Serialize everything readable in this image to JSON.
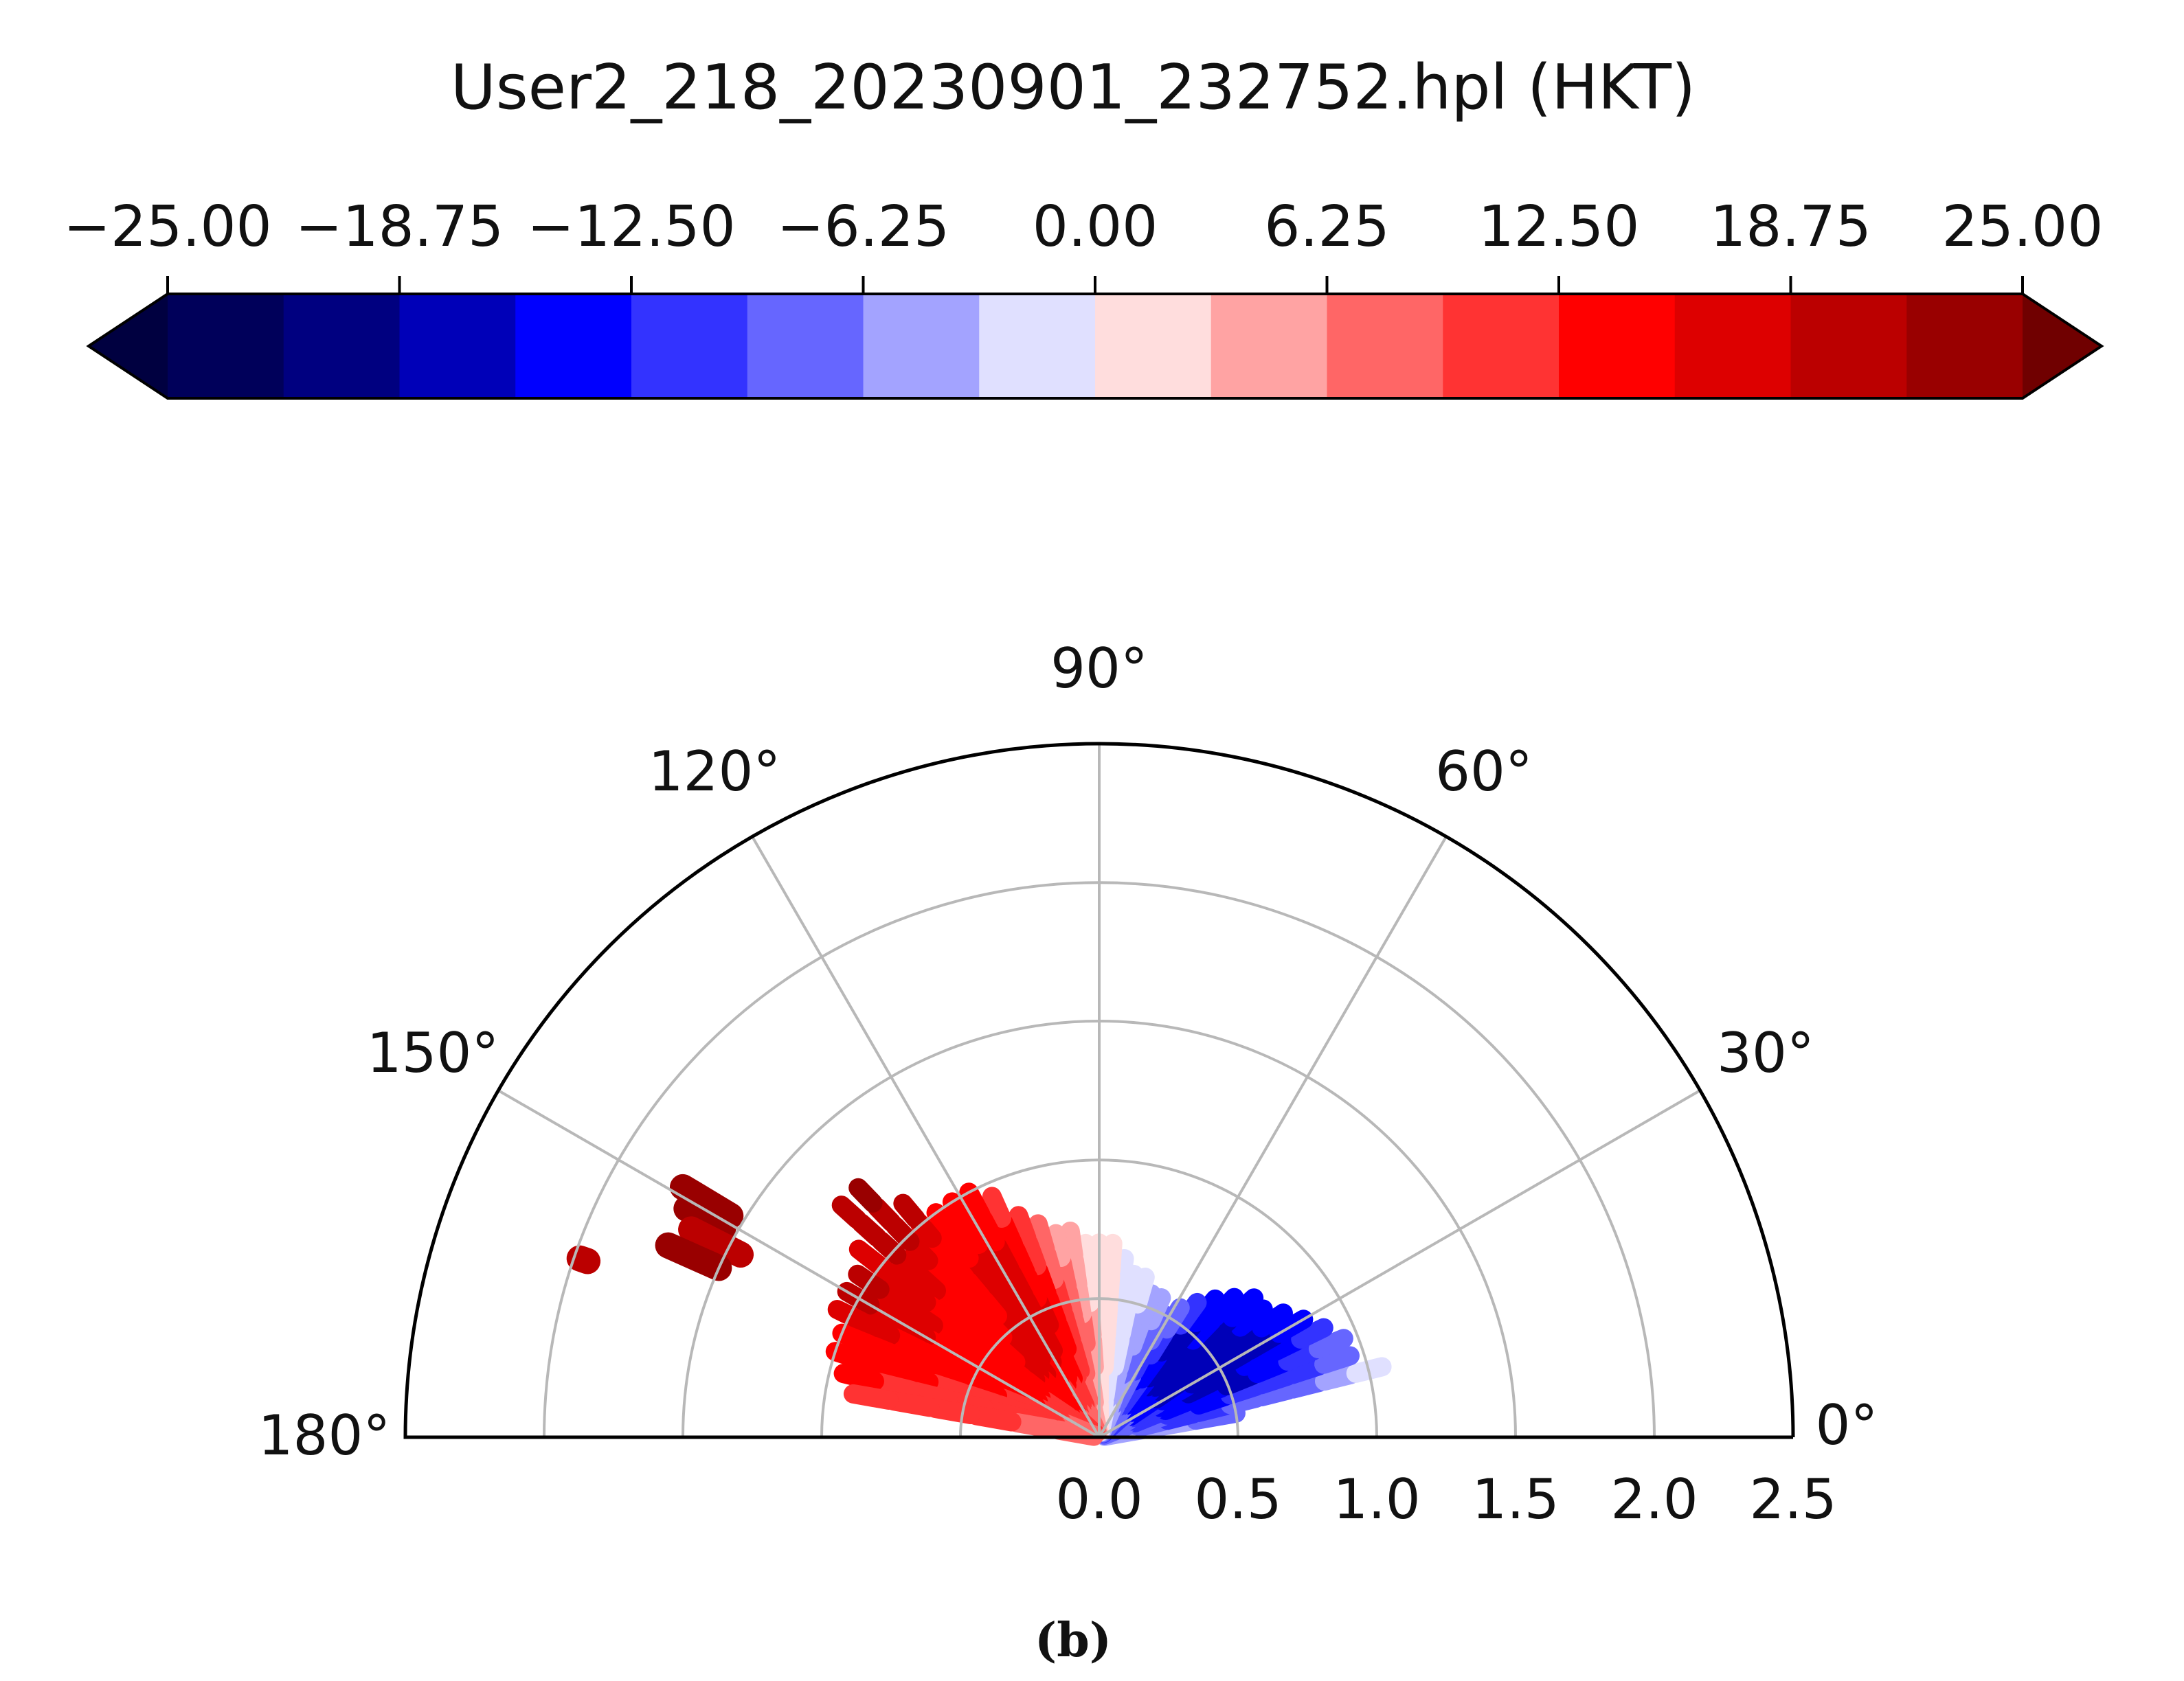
{
  "chart_data": {
    "type": "polar-sector-scatter",
    "title": "User2_218_20230901_232752.hpl (HKT)",
    "panel_label": "(b)",
    "colorbar": {
      "ticks": [
        "−25.00",
        "−18.75",
        "−12.50",
        "−6.25",
        "0.00",
        "6.25",
        "12.50",
        "18.75",
        "25.00"
      ],
      "range": [
        -25,
        25
      ],
      "bins": 16,
      "extend": "both",
      "colors": [
        "#00005a",
        "#000080",
        "#0000b8",
        "#0000ff",
        "#3333ff",
        "#6666ff",
        "#a3a3ff",
        "#e0e0ff",
        "#ffdddd",
        "#ffa3a3",
        "#ff6666",
        "#ff3333",
        "#ff0000",
        "#dd0000",
        "#bb0000",
        "#990000"
      ],
      "under_color": "#000040",
      "over_color": "#700000"
    },
    "angular_axis": {
      "range_deg": [
        0,
        180
      ],
      "ticks": [
        0,
        30,
        60,
        90,
        120,
        150,
        180
      ],
      "tick_labels": [
        "0°",
        "30°",
        "60°",
        "90°",
        "120°",
        "150°",
        "180°"
      ]
    },
    "radial_axis": {
      "range": [
        0,
        2.5
      ],
      "ticks": [
        "0.0",
        "0.5",
        "1.0",
        "1.5",
        "2.0",
        "2.5"
      ]
    },
    "grid": true,
    "beams": [
      {
        "theta": 10,
        "r_max": 0.5,
        "values": [
          -4,
          -6,
          -7
        ]
      },
      {
        "theta": 14,
        "r_max": 1.05,
        "values": [
          -5,
          -8,
          -10,
          -11,
          -9,
          -8,
          -7,
          -5,
          -3
        ]
      },
      {
        "theta": 18,
        "r_max": 0.95,
        "values": [
          -6,
          -9,
          -11,
          -13,
          -12,
          -11,
          -10,
          -8
        ]
      },
      {
        "theta": 22,
        "r_max": 0.95,
        "values": [
          -7,
          -10,
          -13,
          -15,
          -16,
          -14,
          -12,
          -9
        ]
      },
      {
        "theta": 26,
        "r_max": 0.9,
        "values": [
          -8,
          -11,
          -14,
          -16,
          -17,
          -15,
          -13,
          -10
        ]
      },
      {
        "theta": 30,
        "r_max": 0.85,
        "values": [
          -8,
          -12,
          -15,
          -17,
          -18,
          -16,
          -14
        ]
      },
      {
        "theta": 34,
        "r_max": 0.8,
        "values": [
          -9,
          -13,
          -16,
          -18,
          -18,
          -16,
          -13
        ]
      },
      {
        "theta": 38,
        "r_max": 0.75,
        "values": [
          -9,
          -13,
          -16,
          -18,
          -17,
          -15
        ]
      },
      {
        "theta": 42,
        "r_max": 0.75,
        "values": [
          -10,
          -14,
          -17,
          -18,
          -17,
          -15
        ]
      },
      {
        "theta": 46,
        "r_max": 0.7,
        "values": [
          -10,
          -14,
          -16,
          -17,
          -15,
          -13
        ]
      },
      {
        "theta": 50,
        "r_max": 0.65,
        "values": [
          -9,
          -13,
          -16,
          -17,
          -14
        ]
      },
      {
        "theta": 54,
        "r_max": 0.6,
        "values": [
          -9,
          -12,
          -15,
          -16,
          -12
        ]
      },
      {
        "theta": 58,
        "r_max": 0.55,
        "values": [
          -8,
          -11,
          -13,
          -12,
          -8
        ]
      },
      {
        "theta": 62,
        "r_max": 0.5,
        "values": [
          -7,
          -9,
          -11,
          -8
        ]
      },
      {
        "theta": 66,
        "r_max": 0.55,
        "values": [
          -6,
          -8,
          -9,
          -7,
          -5
        ]
      },
      {
        "theta": 70,
        "r_max": 0.55,
        "values": [
          -5,
          -6,
          -7,
          -5,
          -4
        ]
      },
      {
        "theta": 74,
        "r_max": 0.6,
        "values": [
          -4,
          -5,
          -5,
          -4,
          -3
        ]
      },
      {
        "theta": 78,
        "r_max": 0.6,
        "values": [
          -3,
          -4,
          -3,
          -3,
          -2
        ]
      },
      {
        "theta": 82,
        "r_max": 0.65,
        "values": [
          -2,
          -2,
          -2,
          -1,
          -1
        ]
      },
      {
        "theta": 86,
        "r_max": 0.7,
        "values": [
          -1,
          -1,
          0,
          1,
          1,
          0
        ]
      },
      {
        "theta": 90,
        "r_max": 0.7,
        "values": [
          1,
          1,
          2,
          2,
          1,
          1
        ]
      },
      {
        "theta": 94,
        "r_max": 0.7,
        "values": [
          2,
          3,
          4,
          4,
          3,
          2
        ]
      },
      {
        "theta": 98,
        "r_max": 0.75,
        "values": [
          3,
          5,
          6,
          7,
          6,
          5,
          4
        ]
      },
      {
        "theta": 102,
        "r_max": 0.75,
        "values": [
          4,
          6,
          8,
          9,
          8,
          7,
          6
        ]
      },
      {
        "theta": 106,
        "r_max": 0.8,
        "values": [
          5,
          8,
          10,
          12,
          11,
          9,
          8
        ]
      },
      {
        "theta": 110,
        "r_max": 0.85,
        "values": [
          6,
          9,
          12,
          14,
          14,
          13,
          12,
          11
        ]
      },
      {
        "theta": 114,
        "r_max": 0.95,
        "values": [
          7,
          10,
          13,
          15,
          16,
          15,
          14,
          13,
          12
        ]
      },
      {
        "theta": 118,
        "r_max": 1.0,
        "values": [
          8,
          11,
          14,
          16,
          17,
          17,
          16,
          15,
          14
        ]
      },
      {
        "theta": 122,
        "r_max": 1.0,
        "values": [
          8,
          12,
          15,
          17,
          18,
          18,
          17,
          16,
          15,
          14
        ]
      },
      {
        "theta": 126,
        "r_max": 1.0,
        "values": [
          9,
          12,
          15,
          17,
          18,
          17,
          16,
          15,
          14
        ]
      },
      {
        "theta": 130,
        "r_max": 1.1,
        "values": [
          9,
          12,
          15,
          17,
          17,
          16,
          15,
          14,
          14,
          15,
          17,
          20
        ]
      },
      {
        "theta": 134,
        "r_max": 1.25,
        "values": [
          9,
          13,
          15,
          16,
          16,
          15,
          14,
          14,
          15,
          17,
          19,
          21,
          22
        ]
      },
      {
        "theta": 138,
        "r_max": 1.25,
        "values": [
          10,
          13,
          15,
          16,
          15,
          14,
          14,
          15,
          16,
          17,
          19,
          21,
          21
        ]
      },
      {
        "theta": 142,
        "r_max": 1.1,
        "values": [
          10,
          13,
          14,
          15,
          14,
          14,
          15,
          16,
          17,
          18
        ]
      },
      {
        "theta": 146,
        "r_max": 1.05,
        "values": [
          10,
          12,
          14,
          14,
          14,
          15,
          16,
          18,
          20
        ]
      },
      {
        "theta": 150,
        "r_max": 1.05,
        "values": [
          10,
          12,
          13,
          14,
          14,
          15,
          16,
          17,
          21
        ]
      },
      {
        "theta": 154,
        "r_max": 1.05,
        "values": [
          10,
          12,
          13,
          13,
          14,
          14,
          15,
          16,
          17
        ]
      },
      {
        "theta": 158,
        "r_max": 1.0,
        "values": [
          9,
          11,
          12,
          13,
          13,
          14,
          14,
          15
        ]
      },
      {
        "theta": 162,
        "r_max": 1.0,
        "values": [
          9,
          11,
          11,
          12,
          12,
          13,
          13,
          14
        ]
      },
      {
        "theta": 166,
        "r_max": 0.95,
        "values": [
          8,
          10,
          11,
          11,
          12,
          12,
          13
        ]
      },
      {
        "theta": 170,
        "r_max": 0.9,
        "values": [
          8,
          9,
          10,
          11,
          11,
          12
        ]
      }
    ],
    "isolated_segments": [
      {
        "theta": 149,
        "r_from": 1.55,
        "r_to": 1.75,
        "value": 22
      },
      {
        "theta": 151,
        "r_from": 1.55,
        "r_to": 1.7,
        "value": 22
      },
      {
        "theta": 153,
        "r_from": 1.45,
        "r_to": 1.65,
        "value": 21
      },
      {
        "theta": 156,
        "r_from": 1.5,
        "r_to": 1.7,
        "value": 22
      },
      {
        "theta": 161,
        "r_from": 1.95,
        "r_to": 1.98,
        "value": 20
      }
    ]
  }
}
